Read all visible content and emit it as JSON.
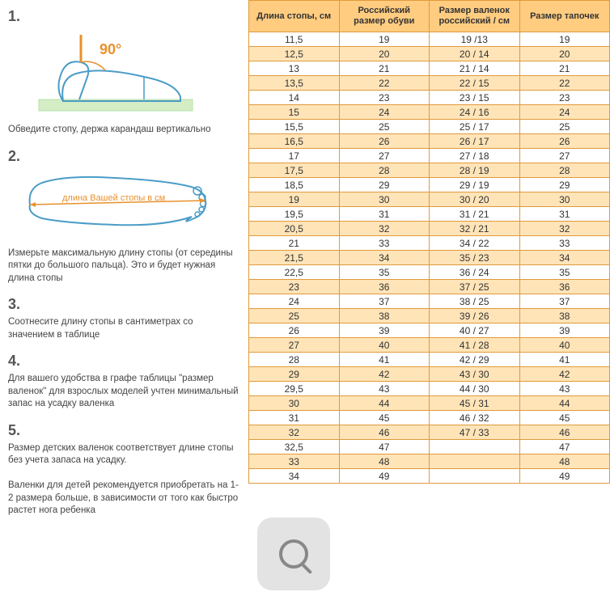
{
  "steps": [
    {
      "num": "1.",
      "text": "Обведите стопу, держа карандаш вертикально"
    },
    {
      "num": "2.",
      "text": "Измерьте максимальную длину стопы (от середины пятки до большого пальца). Это и будет нужная длина стопы"
    },
    {
      "num": "3.",
      "text": "Соотнесите длину стопы в сантиметрах со значением в таблице"
    },
    {
      "num": "4.",
      "text": "Для вашего удобства в графе таблицы \"размер валенок\" для взрослых моделей учтен минимальный запас на усадку валенка"
    },
    {
      "num": "5.",
      "text": "Размер детских валенок соответствует длине стопы без учета запаса на усадку.\n\nВаленки для детей рекомендуется приобретать на 1-2 размера больше, в зависимости от того как быстро растет нога ребенка"
    }
  ],
  "illus1_angle": "90°",
  "illus2_label": "длина Вашей стопы в см",
  "table": {
    "header_bg": "#ffcc80",
    "alt_row_bg": "#ffe4b8",
    "border_color": "#e09a3a",
    "columns": [
      "Длина стопы, см",
      "Российский размер обуви",
      "Размер валенок российский / см",
      "Размер тапочек"
    ],
    "rows": [
      [
        "11,5",
        "19",
        "19 /13",
        "19"
      ],
      [
        "12,5",
        "20",
        "20 / 14",
        "20"
      ],
      [
        "13",
        "21",
        "21 / 14",
        "21"
      ],
      [
        "13,5",
        "22",
        "22 / 15",
        "22"
      ],
      [
        "14",
        "23",
        "23 / 15",
        "23"
      ],
      [
        "15",
        "24",
        "24 / 16",
        "24"
      ],
      [
        "15,5",
        "25",
        "25 / 17",
        "25"
      ],
      [
        "16,5",
        "26",
        "26 / 17",
        "26"
      ],
      [
        "17",
        "27",
        "27 / 18",
        "27"
      ],
      [
        "17,5",
        "28",
        "28 / 19",
        "28"
      ],
      [
        "18,5",
        "29",
        "29 / 19",
        "29"
      ],
      [
        "19",
        "30",
        "30 / 20",
        "30"
      ],
      [
        "19,5",
        "31",
        "31 / 21",
        "31"
      ],
      [
        "20,5",
        "32",
        "32 / 21",
        "32"
      ],
      [
        "21",
        "33",
        "34 / 22",
        "33"
      ],
      [
        "21,5",
        "34",
        "35 / 23",
        "34"
      ],
      [
        "22,5",
        "35",
        "36 / 24",
        "35"
      ],
      [
        "23",
        "36",
        "37 / 25",
        "36"
      ],
      [
        "24",
        "37",
        "38 / 25",
        "37"
      ],
      [
        "25",
        "38",
        "39 / 26",
        "38"
      ],
      [
        "26",
        "39",
        "40 / 27",
        "39"
      ],
      [
        "27",
        "40",
        "41 / 28",
        "40"
      ],
      [
        "28",
        "41",
        "42 / 29",
        "41"
      ],
      [
        "29",
        "42",
        "43 / 30",
        "42"
      ],
      [
        "29,5",
        "43",
        "44 / 30",
        "43"
      ],
      [
        "30",
        "44",
        "45 / 31",
        "44"
      ],
      [
        "31",
        "45",
        "46 / 32",
        "45"
      ],
      [
        "32",
        "46",
        "47 / 33",
        "46"
      ],
      [
        "32,5",
        "47",
        "",
        "47"
      ],
      [
        "33",
        "48",
        "",
        "48"
      ],
      [
        "34",
        "49",
        "",
        "49"
      ]
    ]
  },
  "colors": {
    "step_num": "#555555",
    "text": "#444444",
    "illus_stroke": "#4a9cc7",
    "illus_accent": "#e8912c",
    "illus_ground": "#b8e0a8"
  }
}
